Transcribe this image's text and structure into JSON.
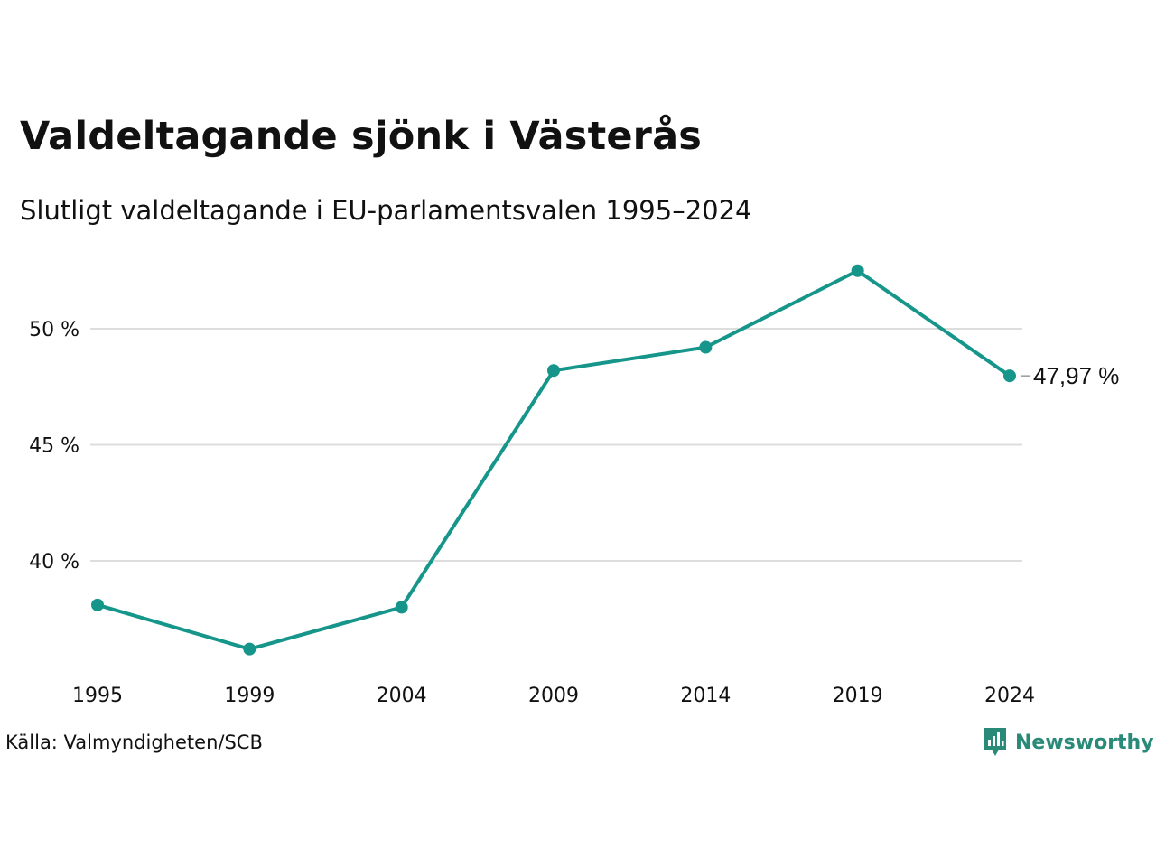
{
  "title": "Valdeltagande sjönk i Västerås",
  "subtitle": "Slutligt valdeltagande i EU-parlamentsvalen 1995–2024",
  "source": "Källa: Valmyndigheten/SCB",
  "brand": {
    "name": "Newsworthy",
    "icon": "newsworthy-logo-icon",
    "color": "#2a8a78"
  },
  "colors": {
    "line": "#16968a",
    "grid": "#dddddd",
    "text": "#111111"
  },
  "chart_data": {
    "type": "line",
    "x": [
      "1995",
      "1999",
      "2004",
      "2009",
      "2014",
      "2019",
      "2024"
    ],
    "series": [
      {
        "values": [
          38.1,
          36.2,
          38.0,
          48.2,
          49.2,
          52.5,
          47.97
        ]
      }
    ],
    "y_ticks": [
      40,
      45,
      50
    ],
    "y_tick_labels": [
      "40 %",
      "45 %",
      "50 %"
    ],
    "ylim": [
      35,
      54
    ],
    "grid": true,
    "end_label": "47,97 %"
  }
}
